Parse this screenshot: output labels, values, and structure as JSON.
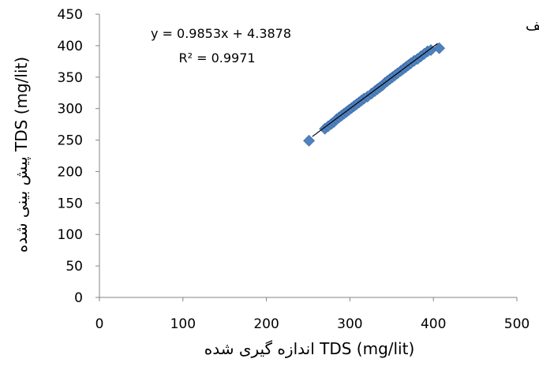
{
  "chart_data": {
    "type": "scatter",
    "panel_label": "الف",
    "xlabel": "TDS (mg/lit) اندازه گیری شده",
    "ylabel": "TDS (mg/lit) پیش بینی شده",
    "xlim": [
      0,
      500
    ],
    "ylim": [
      0,
      450
    ],
    "x_ticks": [
      "0",
      "100",
      "200",
      "300",
      "400",
      "500"
    ],
    "y_ticks": [
      "0",
      "50",
      "100",
      "150",
      "200",
      "250",
      "300",
      "350",
      "400",
      "450"
    ],
    "grid": false,
    "marker": "diamond",
    "marker_color": "#4F81BD",
    "trendline": {
      "equation": "y = 0.9853x + 4.3878",
      "r2": "R² = 0.9971",
      "slope": 0.9853,
      "intercept": 4.3878,
      "x_range": [
        255,
        405
      ]
    },
    "series": [
      {
        "points": [
          [
            251,
            249
          ],
          [
            270,
            268
          ],
          [
            274,
            272
          ],
          [
            278,
            276
          ],
          [
            281,
            279
          ],
          [
            284,
            283
          ],
          [
            287,
            286
          ],
          [
            290,
            289
          ],
          [
            293,
            292
          ],
          [
            296,
            295
          ],
          [
            299,
            298
          ],
          [
            302,
            301
          ],
          [
            305,
            304
          ],
          [
            308,
            307
          ],
          [
            311,
            310
          ],
          [
            314,
            313
          ],
          [
            317,
            316
          ],
          [
            321,
            319
          ],
          [
            326,
            324
          ],
          [
            330,
            328
          ],
          [
            333,
            331
          ],
          [
            336,
            334
          ],
          [
            339,
            337
          ],
          [
            342,
            341
          ],
          [
            345,
            344
          ],
          [
            348,
            347
          ],
          [
            351,
            350
          ],
          [
            354,
            353
          ],
          [
            357,
            356
          ],
          [
            361,
            360
          ],
          [
            364,
            363
          ],
          [
            367,
            366
          ],
          [
            370,
            369
          ],
          [
            373,
            372
          ],
          [
            377,
            376
          ],
          [
            381,
            379
          ],
          [
            385,
            383
          ],
          [
            389,
            387
          ],
          [
            393,
            391
          ],
          [
            397,
            393
          ],
          [
            407,
            396
          ]
        ]
      }
    ]
  }
}
